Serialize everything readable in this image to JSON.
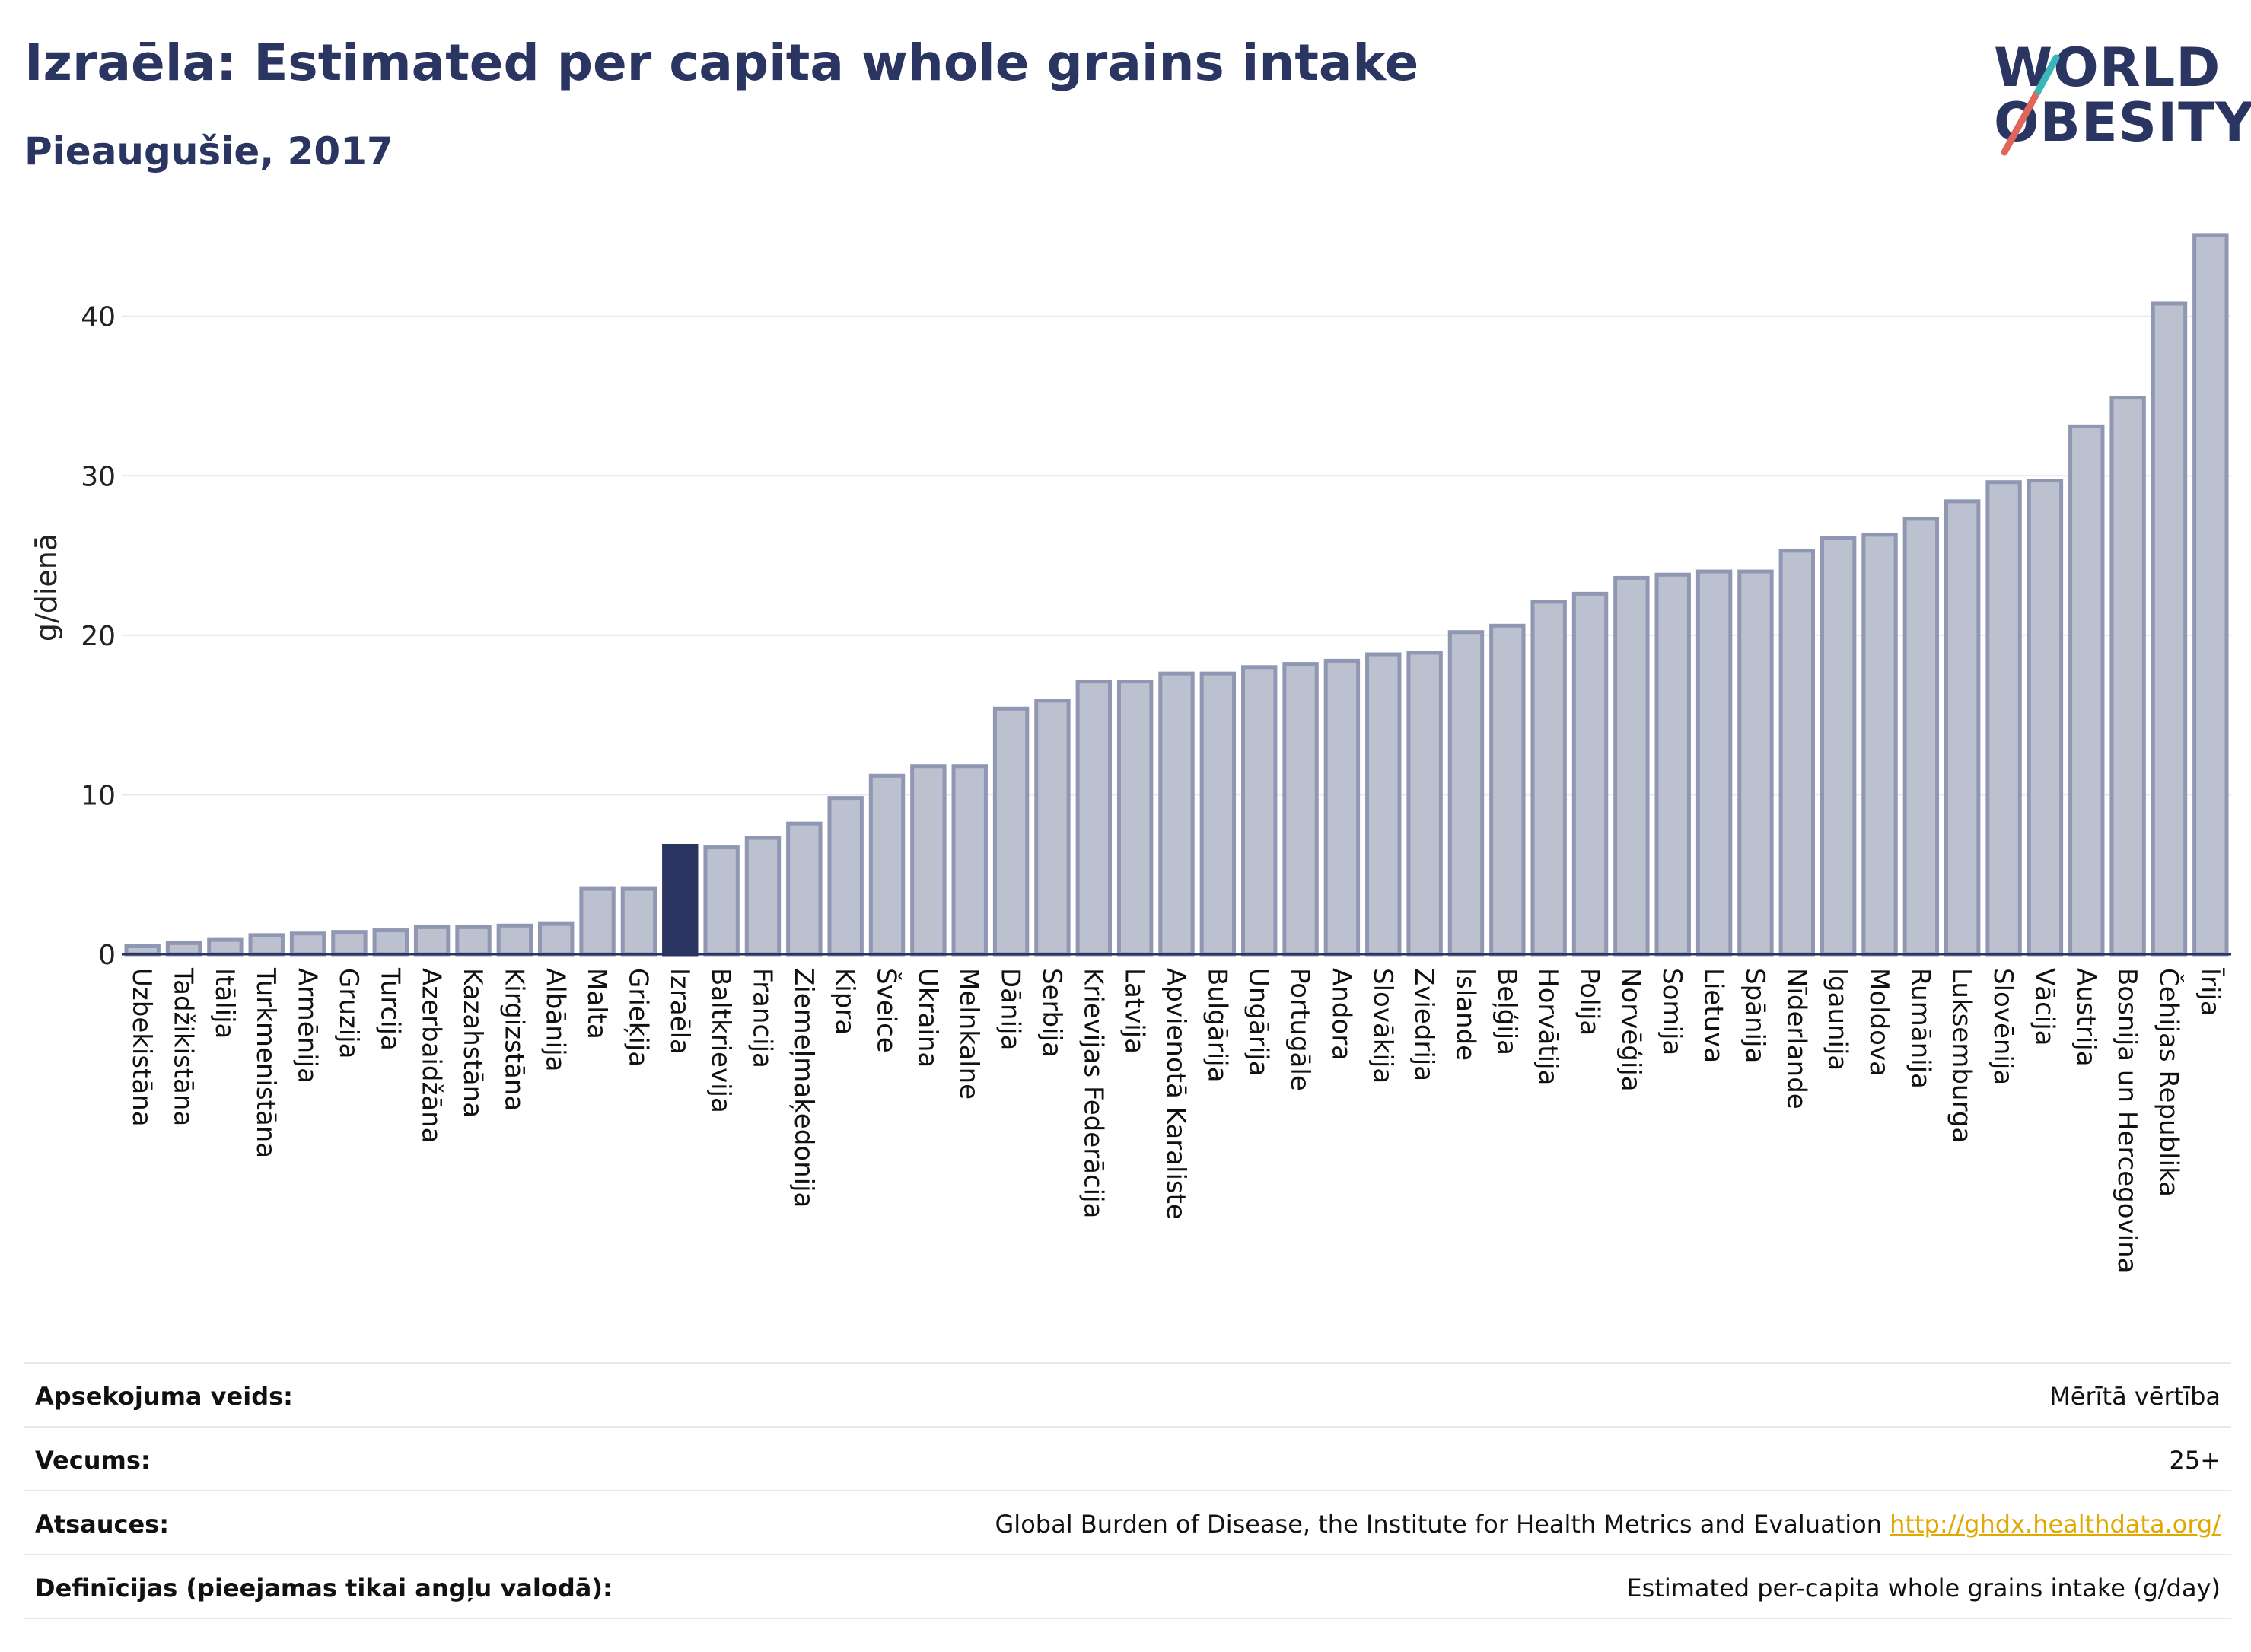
{
  "header": {
    "title": "Izraēla: Estimated per capita whole grains intake",
    "subtitle": "Pieaugušie, 2017"
  },
  "logo": {
    "line1": "WORLD",
    "line2": "OBESITY"
  },
  "colors": {
    "bar": "#bcc1d0",
    "bar_stroke": "#8f97b2",
    "highlight": "#2b3561",
    "accent_red": "#e0655a",
    "accent_teal": "#3ab5b8",
    "grid": "#e6e8ee"
  },
  "chart_data": {
    "type": "bar",
    "ylabel": "g/dienā",
    "ylim": [
      0,
      46
    ],
    "yticks": [
      0,
      10,
      20,
      30,
      40
    ],
    "highlight": "Izraēla",
    "categories": [
      "Uzbekistāna",
      "Tadžikistāna",
      "Itālija",
      "Turkmenistāna",
      "Armēnija",
      "Gruzija",
      "Turcija",
      "Azerbaidžāna",
      "Kazahstāna",
      "Kirgizstāna",
      "Albānija",
      "Malta",
      "Grieķija",
      "Izraēla",
      "Baltkrievija",
      "Francija",
      "Ziemeļmaķedonija",
      "Kipra",
      "Šveice",
      "Ukraina",
      "Melnkalne",
      "Dānija",
      "Serbija",
      "Krievijas Federācija",
      "Latvija",
      "Apvienotā Karaliste",
      "Bulgārija",
      "Ungārija",
      "Portugāle",
      "Andora",
      "Slovākija",
      "Zviedrija",
      "Islande",
      "Beļģija",
      "Horvātija",
      "Polija",
      "Norvēģija",
      "Somija",
      "Lietuva",
      "Spānija",
      "Nīderlande",
      "Igaunija",
      "Moldova",
      "Rumānija",
      "Luksemburga",
      "Slovēnija",
      "Vācija",
      "Austrija",
      "Bosnija un Hercegovina",
      "Čehijas Republika",
      "Īrija"
    ],
    "values": [
      0.5,
      0.7,
      0.9,
      1.2,
      1.3,
      1.4,
      1.5,
      1.7,
      1.7,
      1.8,
      1.9,
      4.1,
      4.1,
      6.8,
      6.7,
      7.3,
      8.2,
      9.8,
      11.2,
      11.8,
      11.8,
      15.4,
      15.9,
      17.1,
      17.1,
      17.6,
      17.6,
      18.0,
      18.2,
      18.4,
      18.8,
      18.9,
      20.2,
      20.6,
      22.1,
      22.6,
      23.6,
      23.8,
      24.0,
      24.0,
      25.3,
      26.1,
      26.3,
      27.3,
      28.4,
      29.6,
      29.7,
      33.1,
      34.9,
      40.8,
      45.1
    ]
  },
  "info": {
    "survey_label": "Apsekojuma veids:",
    "survey_value": "Mērītā vērtība",
    "age_label": "Vecums:",
    "age_value": "25+",
    "source_label": "Atsauces:",
    "source_value": "Global Burden of Disease, the Institute for Health Metrics and Evaluation",
    "source_link": "http://ghdx.healthdata.org/",
    "definition_label": "Definīcijas (pieejamas tikai angļu valodā):",
    "definition_value": "Estimated per-capita whole grains intake (g/day)"
  }
}
